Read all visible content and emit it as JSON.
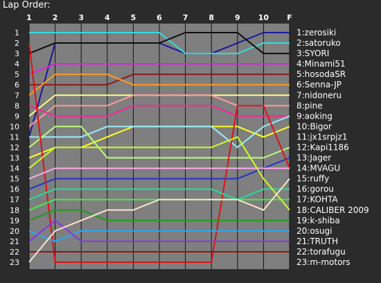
{
  "chart_data": {
    "type": "line",
    "title": "Lap Order:",
    "x": [
      "1",
      "2",
      "3",
      "4",
      "5",
      "6",
      "7",
      "8",
      "9",
      "10",
      "F"
    ],
    "y_ticks": [
      "1",
      "2",
      "3",
      "4",
      "5",
      "6",
      "7",
      "8",
      "9",
      "10",
      "11",
      "12",
      "13",
      "14",
      "15",
      "16",
      "17",
      "18",
      "19",
      "20",
      "21",
      "22",
      "23"
    ],
    "ylim": [
      1,
      23
    ],
    "y_reversed": true,
    "grid": true,
    "colors": {
      "background": "#2b2b2b",
      "plot_background": "#7f7f7f",
      "grid": "#111111",
      "text": "#ffffff"
    },
    "series": [
      {
        "name": "1:zerosiki",
        "color": "#1a1a9a",
        "values": [
          11,
          2,
          2,
          2,
          2,
          2,
          3,
          3,
          2,
          1,
          1
        ]
      },
      {
        "name": "2:satoruko",
        "color": "#33dddd",
        "values": [
          1,
          1,
          1,
          1,
          1,
          1,
          3,
          3,
          3,
          2,
          2
        ]
      },
      {
        "name": "3:SYORI",
        "color": "#0d0d0d",
        "values": [
          3,
          2,
          2,
          2,
          2,
          2,
          1,
          1,
          1,
          3,
          3
        ]
      },
      {
        "name": "4:Minami51",
        "color": "#dd22dd",
        "values": [
          5,
          4,
          4,
          4,
          4,
          4,
          4,
          4,
          4,
          4,
          4
        ]
      },
      {
        "name": "5:hosodaSR",
        "color": "#8a1a1a",
        "values": [
          6,
          6,
          6,
          6,
          5,
          5,
          5,
          5,
          5,
          5,
          5
        ]
      },
      {
        "name": "6:Senna-JP",
        "color": "#ff9922",
        "values": [
          7,
          5,
          5,
          5,
          6,
          6,
          6,
          6,
          6,
          6,
          6
        ]
      },
      {
        "name": "7:nidoneru",
        "color": "#ffff88",
        "values": [
          9,
          7,
          7,
          7,
          7,
          7,
          7,
          7,
          7,
          7,
          7
        ]
      },
      {
        "name": "8:pine",
        "color": "#ff9999",
        "values": [
          10,
          8,
          8,
          8,
          7,
          7,
          7,
          7,
          8,
          8,
          8
        ]
      },
      {
        "name": "9:aoking",
        "color": "#ff2299",
        "values": [
          8,
          9,
          9,
          9,
          8,
          8,
          8,
          8,
          9,
          9,
          9
        ]
      },
      {
        "name": "10:Bigor",
        "color": "#ffff22",
        "values": [
          13,
          12,
          12,
          11,
          10,
          10,
          10,
          10,
          10,
          11,
          10
        ]
      },
      {
        "name": "11:jx1srpjz1",
        "color": "#99eeff",
        "values": [
          11,
          11,
          11,
          10,
          10,
          10,
          10,
          10,
          12,
          10,
          9
        ]
      },
      {
        "name": "12:Kapi1186",
        "color": "#bbff77",
        "values": [
          12,
          10,
          10,
          13,
          13,
          13,
          13,
          13,
          13,
          13,
          12
        ]
      },
      {
        "name": "13:Jager",
        "color": "#2233cc",
        "values": [
          16,
          15,
          15,
          15,
          15,
          15,
          15,
          15,
          15,
          14,
          13
        ]
      },
      {
        "name": "14:MVAGU",
        "color": "#dd1111",
        "values": [
          2,
          23,
          23,
          23,
          23,
          23,
          23,
          23,
          8,
          8,
          14
        ]
      },
      {
        "name": "15:ruffy",
        "color": "#ffaaee",
        "values": [
          15,
          14,
          14,
          14,
          14,
          14,
          14,
          14,
          14,
          14,
          14
        ]
      },
      {
        "name": "16:gorou",
        "color": "#22dd99",
        "values": [
          17,
          16,
          16,
          16,
          16,
          16,
          16,
          16,
          17,
          16,
          16
        ]
      },
      {
        "name": "17:KOHTA",
        "color": "#44ee44",
        "values": [
          18,
          17,
          17,
          17,
          17,
          17,
          17,
          17,
          17,
          17,
          17
        ]
      },
      {
        "name": "18:CALIBER 2009",
        "color": "#ccff22",
        "values": [
          14,
          12,
          12,
          12,
          12,
          12,
          12,
          12,
          11,
          15,
          18
        ]
      },
      {
        "name": "19:k-shiba",
        "color": "#229922",
        "values": [
          19,
          18,
          18,
          19,
          19,
          19,
          19,
          19,
          19,
          19,
          19
        ]
      },
      {
        "name": "20:osugi",
        "color": "#22aaff",
        "values": [
          20,
          21,
          20,
          20,
          20,
          20,
          20,
          20,
          20,
          20,
          20
        ]
      },
      {
        "name": "21:TRUTH",
        "color": "#8833ee",
        "values": [
          21,
          19,
          21,
          21,
          21,
          21,
          21,
          21,
          21,
          21,
          21
        ]
      },
      {
        "name": "22:torafugu",
        "color": "#991111",
        "values": [
          22,
          22,
          22,
          22,
          22,
          22,
          22,
          22,
          22,
          22,
          22
        ]
      },
      {
        "name": "23:m-motors",
        "color": "#ffe4cc",
        "values": [
          23,
          20,
          19,
          18,
          18,
          17,
          17,
          17,
          17,
          18,
          15
        ]
      }
    ]
  }
}
